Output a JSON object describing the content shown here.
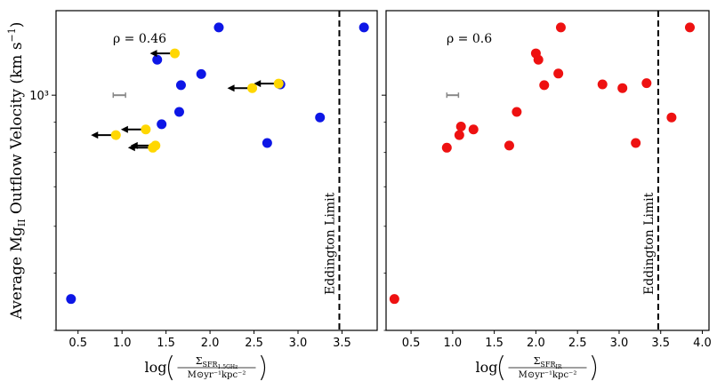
{
  "chart_data": [
    {
      "type": "scatter",
      "panel": "left",
      "ylabel": "Average Mg II Outflow Velocity (km s^-1)",
      "ylabel_parts": {
        "pre": "Average Mg",
        "sub": "II",
        "mid": " Outflow Velocity (km s",
        "sup": "−1",
        "post": ")"
      },
      "xlabel_parts": {
        "log": "log",
        "num": "Σ",
        "num_sub": "SFR",
        "num_subsub": "1.5GHz",
        "den": "M⊙yr⁻¹kpc⁻²"
      },
      "xlim": [
        0.25,
        3.9
      ],
      "xticks": [
        0.5,
        1.0,
        1.5,
        2.0,
        2.5,
        3.0,
        3.5
      ],
      "xtick_labels": [
        "0.5",
        "1.0",
        "1.5",
        "2.0",
        "2.5",
        "3.0",
        "3.5"
      ],
      "ylog": true,
      "ylim": [
        400,
        1390
      ],
      "ytick_labels": [
        {
          "value": 1000,
          "text": "10³"
        }
      ],
      "annotation": "ρ = 0.46",
      "eddington_x": 3.47,
      "eddington_label": "Eddington Limit",
      "error_bar": {
        "x": 0.97,
        "xerr": 0.07,
        "y": 1000
      },
      "series": [
        {
          "name": "detections",
          "color": "#0d16e6",
          "points": [
            [
              0.42,
              452
            ],
            [
              2.1,
              1302
            ],
            [
              3.75,
              1302
            ],
            [
              1.4,
              1148
            ],
            [
              1.9,
              1086
            ],
            [
              1.67,
              1040
            ],
            [
              2.8,
              1043
            ],
            [
              1.65,
              937
            ],
            [
              1.45,
              893
            ],
            [
              3.25,
              917
            ],
            [
              2.65,
              830
            ]
          ]
        },
        {
          "name": "upper limits",
          "color": "#ffd700",
          "points": [
            [
              1.6,
              1177
            ],
            [
              2.78,
              1046
            ],
            [
              2.48,
              1028
            ],
            [
              1.27,
              875
            ],
            [
              0.93,
              856
            ],
            [
              1.38,
              822
            ],
            [
              1.35,
              815
            ]
          ]
        }
      ]
    },
    {
      "type": "scatter",
      "panel": "right",
      "xlabel_parts": {
        "log": "log",
        "num": "Σ",
        "num_sub": "SFR",
        "num_subsub": "IR",
        "den": "M⊙yr⁻¹kpc⁻²"
      },
      "xlim": [
        0.2,
        4.08
      ],
      "xticks": [
        0.5,
        1.0,
        1.5,
        2.0,
        2.5,
        3.0,
        3.5,
        4.0
      ],
      "xtick_labels": [
        "0.5",
        "1.0",
        "1.5",
        "2.0",
        "2.5",
        "3.0",
        "3.5",
        "4.0"
      ],
      "ylog": true,
      "ylim": [
        400,
        1390
      ],
      "annotation": "ρ = 0.6",
      "eddington_x": 3.47,
      "eddington_label": "Eddington Limit",
      "error_bar": {
        "x": 1.0,
        "xerr": 0.07,
        "y": 1000
      },
      "series": [
        {
          "name": "detections",
          "color": "#ee1111",
          "points": [
            [
              0.3,
              452
            ],
            [
              2.3,
              1302
            ],
            [
              3.85,
              1302
            ],
            [
              2.0,
              1177
            ],
            [
              2.03,
              1148
            ],
            [
              2.27,
              1088
            ],
            [
              2.1,
              1040
            ],
            [
              2.8,
              1043
            ],
            [
              3.33,
              1048
            ],
            [
              3.04,
              1028
            ],
            [
              1.77,
              937
            ],
            [
              3.63,
              917
            ],
            [
              1.1,
              885
            ],
            [
              1.25,
              875
            ],
            [
              1.08,
              856
            ],
            [
              3.2,
              830
            ],
            [
              1.68,
              822
            ],
            [
              0.93,
              815
            ]
          ]
        }
      ]
    }
  ]
}
